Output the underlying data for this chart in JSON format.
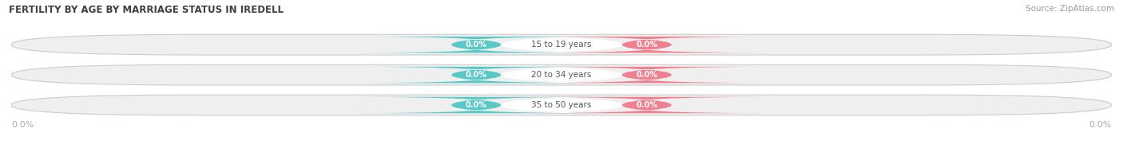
{
  "title": "FERTILITY BY AGE BY MARRIAGE STATUS IN IREDELL",
  "source": "Source: ZipAtlas.com",
  "categories": [
    "15 to 19 years",
    "20 to 34 years",
    "35 to 50 years"
  ],
  "married_values": [
    0.0,
    0.0,
    0.0
  ],
  "unmarried_values": [
    0.0,
    0.0,
    0.0
  ],
  "married_color": "#5bc8c8",
  "unmarried_color": "#f08090",
  "bar_bg_color": "#efefef",
  "bar_border_color": "#cccccc",
  "bg_color": "#ffffff",
  "title_color": "#404040",
  "source_color": "#999999",
  "label_color": "#555555",
  "value_text_color": "#ffffff",
  "axis_label_color": "#aaaaaa",
  "figsize": [
    14.06,
    1.96
  ],
  "dpi": 100
}
